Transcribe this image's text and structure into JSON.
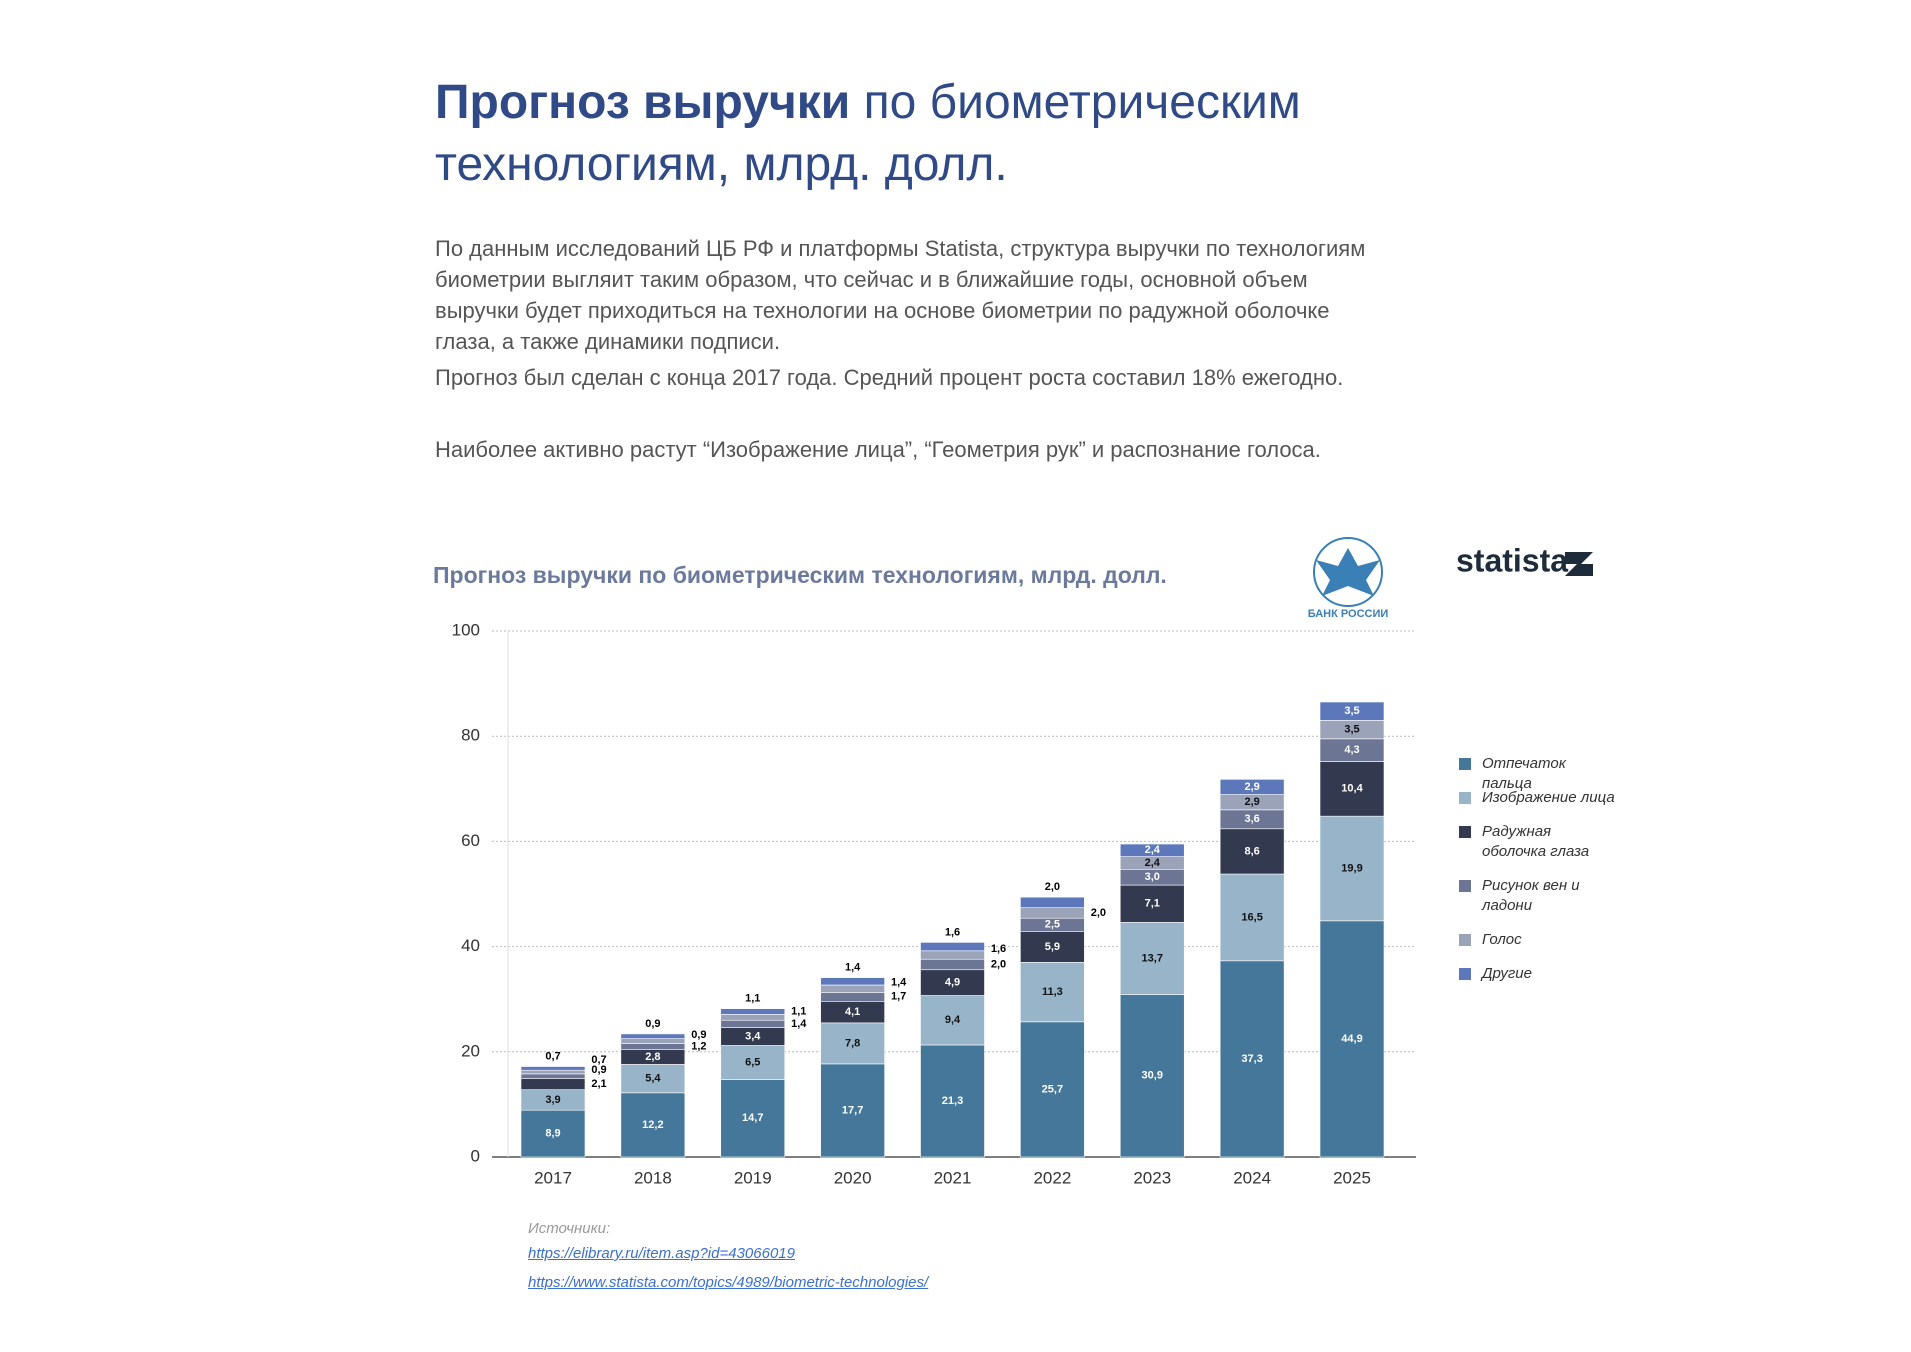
{
  "header": {
    "title_bold": "Прогноз выручки",
    "title_rest": "по биометрическим технологиям, млрд. долл."
  },
  "paragraphs": [
    "По данным исследований ЦБ РФ и платформы Statista, структура выручки по технологиям биометрии выгляит таким образом, что сейчас и в ближайшие годы, основной объем выручки будет приходиться на технологии на основе биометрии по радужной оболочке глаза, а также динамики подписи.",
    "Прогноз был сделан с конца 2017 года. Средний процент роста составил 18% ежегодно.",
    "Наиболее активно растут “Изображение лица”, “Геометрия рук” и распознание голоса."
  ],
  "logos": {
    "bank": "БАНК РОССИИ",
    "statista": "statista"
  },
  "sources": {
    "heading": "Источники:",
    "links": [
      "https://elibrary.ru/item.asp?id=43066019",
      "https://www.statista.com/topics/4989/biometric-technologies/"
    ]
  },
  "chart_data": {
    "type": "stacked_bar",
    "title": "Прогноз выручки по биометрическим технологиям, млрд. долл.",
    "categories": [
      "2017",
      "2018",
      "2019",
      "2020",
      "2021",
      "2022",
      "2023",
      "2024",
      "2025"
    ],
    "ylim": [
      0,
      100
    ],
    "yticks": [
      0,
      20,
      40,
      60,
      80,
      100
    ],
    "grid": true,
    "series": [
      {
        "name": "Отпечаток пальца",
        "color": "#44779a",
        "values": [
          8.9,
          12.2,
          14.7,
          17.7,
          21.3,
          25.7,
          30.9,
          37.3,
          44.9
        ],
        "value_labels": [
          "8,9",
          "12,2",
          "14,7",
          "17,7",
          "21,3",
          "25,7",
          "30,9",
          "37,3",
          "44,9"
        ]
      },
      {
        "name": "Изображение лица",
        "color": "#97b4c8",
        "values": [
          3.9,
          5.4,
          6.5,
          7.8,
          9.4,
          11.3,
          13.7,
          16.5,
          19.9
        ],
        "value_labels": [
          "3,9",
          "5,4",
          "6,5",
          "7,8",
          "9,4",
          "11,3",
          "13,7",
          "16,5",
          "19,9"
        ]
      },
      {
        "name": "Радужная оболочка глаза",
        "color": "#333a4f",
        "values": [
          2.1,
          2.8,
          3.4,
          4.1,
          4.9,
          5.9,
          7.1,
          8.6,
          10.4
        ],
        "value_labels": [
          "2,1",
          "2,8",
          "3,4",
          "4,1",
          "4,9",
          "5,9",
          "7,1",
          "8,6",
          "10,4"
        ]
      },
      {
        "name": "Рисунок вен и ладони",
        "color": "#6c7694",
        "values": [
          0.9,
          1.2,
          1.4,
          1.7,
          2.0,
          2.5,
          3.0,
          3.6,
          4.3
        ],
        "value_labels": [
          "0,9",
          "1,2",
          "1,4",
          "1,7",
          "2,0",
          "2,5",
          "3,0",
          "3,6",
          "4,3"
        ]
      },
      {
        "name": "Голос",
        "color": "#9ba3b9",
        "values": [
          0.7,
          0.9,
          1.1,
          1.4,
          1.6,
          2.0,
          2.4,
          2.9,
          3.5
        ],
        "value_labels": [
          "0,7",
          "0,9",
          "1,1",
          "1,4",
          "1,6",
          "2,0",
          "2,4",
          "2,9",
          "3,5"
        ]
      },
      {
        "name": "Другие",
        "color": "#5c77ba",
        "values": [
          0.7,
          0.9,
          1.1,
          1.4,
          1.6,
          2.0,
          2.4,
          2.9,
          3.5
        ],
        "value_labels": [
          "0,7",
          "0,9",
          "1,1",
          "1,4",
          "1,6",
          "2,0",
          "2,4",
          "2,9",
          "3,5"
        ]
      }
    ]
  }
}
